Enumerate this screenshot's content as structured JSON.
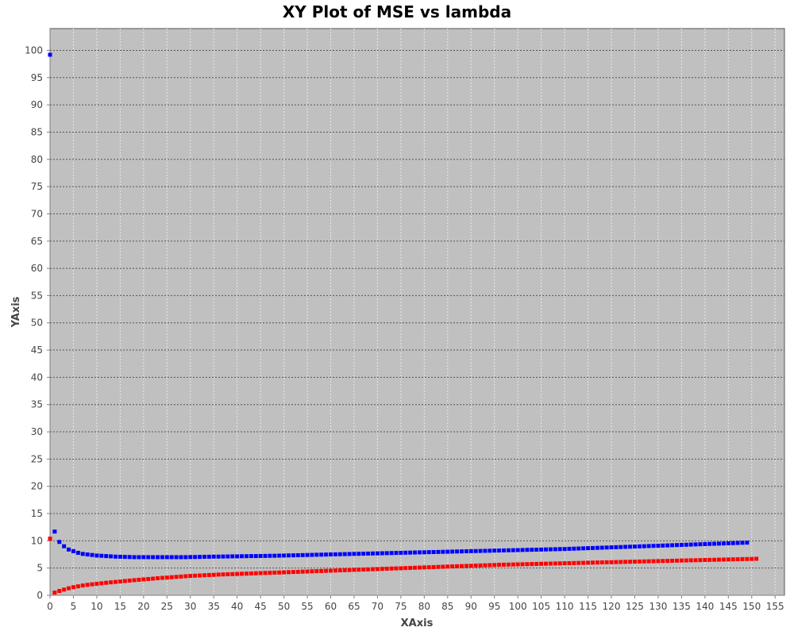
{
  "chart_data": {
    "type": "scatter",
    "title": "XY Plot of MSE vs lambda",
    "xlabel": "XAxis",
    "ylabel": "YAxis",
    "xlim": [
      0,
      157
    ],
    "ylim": [
      0,
      104
    ],
    "x_ticks": [
      0,
      5,
      10,
      15,
      20,
      25,
      30,
      35,
      40,
      45,
      50,
      55,
      60,
      65,
      70,
      75,
      80,
      85,
      90,
      95,
      100,
      105,
      110,
      115,
      120,
      125,
      130,
      135,
      140,
      145,
      150,
      155
    ],
    "y_ticks": [
      0,
      5,
      10,
      15,
      20,
      25,
      30,
      35,
      40,
      45,
      50,
      55,
      60,
      65,
      70,
      75,
      80,
      85,
      90,
      95,
      100
    ],
    "grid": true,
    "background_color": "#c0c0c0",
    "series": [
      {
        "color": "#0000ff",
        "x_start": 0,
        "x_step": 1,
        "values": [
          99.2,
          11.7,
          9.8,
          9.0,
          8.4,
          8.1,
          7.8,
          7.6,
          7.5,
          7.4,
          7.3,
          7.25,
          7.2,
          7.15,
          7.1,
          7.08,
          7.05,
          7.03,
          7.0,
          7.0,
          7.0,
          7.0,
          7.0,
          7.0,
          7.0,
          7.0,
          7.0,
          7.0,
          7.0,
          7.0,
          7.02,
          7.03,
          7.05,
          7.07,
          7.08,
          7.1,
          7.1,
          7.12,
          7.13,
          7.15,
          7.15,
          7.17,
          7.18,
          7.2,
          7.2,
          7.22,
          7.23,
          7.25,
          7.26,
          7.28,
          7.3,
          7.32,
          7.34,
          7.36,
          7.38,
          7.4,
          7.42,
          7.44,
          7.46,
          7.48,
          7.5,
          7.52,
          7.54,
          7.56,
          7.58,
          7.6,
          7.62,
          7.64,
          7.66,
          7.68,
          7.7,
          7.72,
          7.74,
          7.76,
          7.78,
          7.8,
          7.82,
          7.84,
          7.86,
          7.88,
          7.9,
          7.92,
          7.94,
          7.96,
          7.98,
          8.0,
          8.02,
          8.04,
          8.06,
          8.08,
          8.1,
          8.12,
          8.14,
          8.16,
          8.18,
          8.2,
          8.22,
          8.24,
          8.26,
          8.28,
          8.3,
          8.32,
          8.34,
          8.36,
          8.38,
          8.4,
          8.42,
          8.44,
          8.46,
          8.48,
          8.5,
          8.53,
          8.56,
          8.59,
          8.62,
          8.65,
          8.68,
          8.71,
          8.74,
          8.77,
          8.8,
          8.83,
          8.86,
          8.89,
          8.92,
          8.95,
          8.98,
          9.01,
          9.04,
          9.07,
          9.1,
          9.13,
          9.16,
          9.19,
          9.22,
          9.25,
          9.28,
          9.31,
          9.34,
          9.37,
          9.4,
          9.43,
          9.46,
          9.49,
          9.52,
          9.55,
          9.58,
          9.61,
          9.64,
          9.67
        ]
      },
      {
        "color": "#ff0000",
        "x_start": 0,
        "x_step": 1,
        "values": [
          10.4,
          0.5,
          0.8,
          1.05,
          1.3,
          1.5,
          1.65,
          1.8,
          1.92,
          2.02,
          2.12,
          2.2,
          2.3,
          2.38,
          2.46,
          2.54,
          2.62,
          2.7,
          2.78,
          2.85,
          2.92,
          2.99,
          3.06,
          3.13,
          3.2,
          3.26,
          3.32,
          3.38,
          3.44,
          3.5,
          3.55,
          3.6,
          3.64,
          3.68,
          3.72,
          3.76,
          3.8,
          3.83,
          3.86,
          3.89,
          3.92,
          3.95,
          3.98,
          4.01,
          4.04,
          4.07,
          4.1,
          4.13,
          4.16,
          4.19,
          4.22,
          4.25,
          4.28,
          4.31,
          4.34,
          4.37,
          4.4,
          4.43,
          4.46,
          4.49,
          4.52,
          4.55,
          4.58,
          4.61,
          4.64,
          4.67,
          4.7,
          4.73,
          4.76,
          4.79,
          4.82,
          4.85,
          4.88,
          4.91,
          4.94,
          4.97,
          5.0,
          5.03,
          5.06,
          5.09,
          5.12,
          5.15,
          5.18,
          5.21,
          5.24,
          5.27,
          5.3,
          5.33,
          5.36,
          5.39,
          5.42,
          5.45,
          5.48,
          5.51,
          5.54,
          5.57,
          5.6,
          5.62,
          5.64,
          5.66,
          5.68,
          5.7,
          5.72,
          5.74,
          5.76,
          5.78,
          5.8,
          5.82,
          5.84,
          5.86,
          5.88,
          5.9,
          5.92,
          5.94,
          5.96,
          5.98,
          6.0,
          6.02,
          6.04,
          6.06,
          6.08,
          6.1,
          6.12,
          6.14,
          6.16,
          6.18,
          6.2,
          6.22,
          6.24,
          6.26,
          6.28,
          6.3,
          6.32,
          6.34,
          6.36,
          6.38,
          6.4,
          6.42,
          6.44,
          6.46,
          6.48,
          6.5,
          6.52,
          6.54,
          6.56,
          6.58,
          6.6,
          6.62,
          6.64,
          6.66,
          6.68,
          6.7
        ]
      }
    ]
  }
}
